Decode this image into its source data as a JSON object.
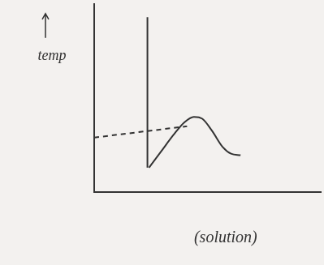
{
  "chart_data": {
    "type": "line",
    "x_label": "(solution)",
    "y_label": "temp",
    "xlim": [
      0,
      100
    ],
    "ylim": [
      0,
      100
    ],
    "grid": false,
    "tick_labels": false,
    "series": [
      {
        "x": [
          23.5,
          23.5
        ],
        "values": [
          13,
          93
        ],
        "color": "#333333",
        "line_style": "solid"
      },
      {
        "x": [
          24.2,
          29.6,
          35,
          39.7,
          44,
          47.7,
          52,
          56.7,
          60.4,
          64.6
        ],
        "values": [
          13,
          21.7,
          30.4,
          37,
          40,
          39,
          32.6,
          24,
          20.4,
          19.6
        ],
        "color": "#333333",
        "line_style": "solid"
      },
      {
        "x": [
          0,
          41
        ],
        "values": [
          29,
          35
        ],
        "color": "#333333",
        "line_style": "dashed"
      }
    ]
  }
}
